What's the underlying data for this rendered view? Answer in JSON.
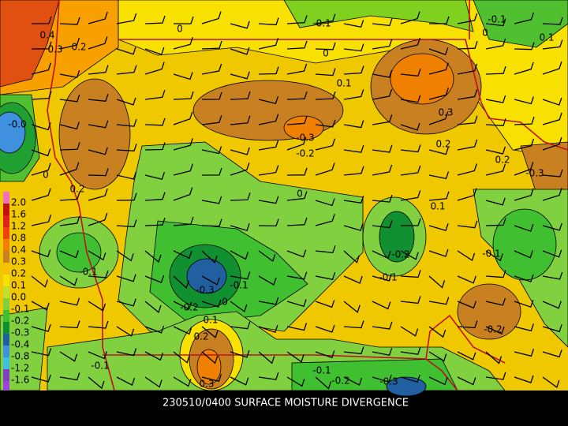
{
  "caption": "230510/0400 SURFACE MOISTURE DIVERGENCE",
  "legend": {
    "labels": [
      "2.0",
      "1.6",
      "1.2",
      "0.8",
      "0.4",
      "0.3",
      "0.2",
      "0.1",
      "0.0",
      "-0.1",
      "-0.2",
      "-0.3",
      "-0.4",
      "-0.8",
      "-1.2",
      "-1.6"
    ]
  },
  "contour_labels": [
    "0.4",
    "0.3",
    "0.2",
    "0",
    "-0.1",
    "0",
    "-0.1",
    "0",
    "0.1",
    "0.1",
    "0.3",
    "-0.3",
    "-0.2",
    "0.2",
    "0.2",
    "-0.3",
    "-0.0",
    "0",
    "0.2",
    "0",
    "0.1",
    "-0.2",
    "-0.1",
    "-0.1",
    "-0.1",
    "-0.3",
    "-0.1",
    "0",
    "-0.2",
    "0.1",
    "0.2",
    "-0.2",
    "0.3",
    "-0.1",
    "-0.1",
    "-0.2",
    "-0.3"
  ]
}
